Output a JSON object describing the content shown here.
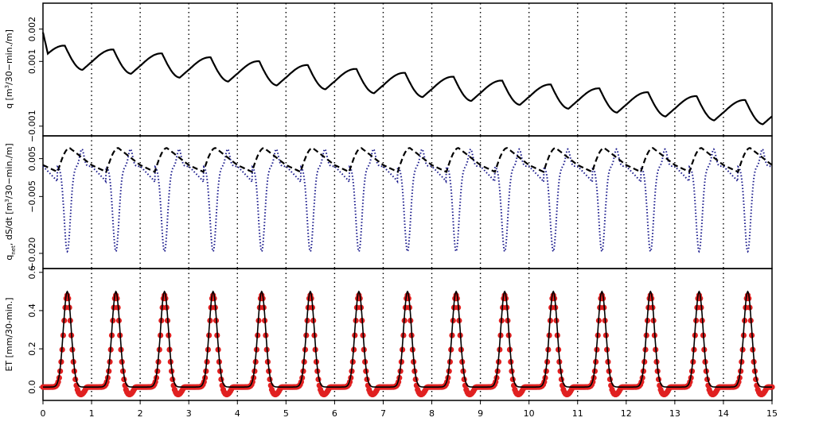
{
  "chart_data": [
    {
      "type": "line",
      "title": "",
      "ylabel": "q [m³/30-min./m]",
      "ylabel_parts": {
        "a": "q  [m",
        "sup": "3",
        "b": "/30−min./m]"
      },
      "xlim": [
        0,
        15
      ],
      "ylim": [
        -0.0013,
        0.0028
      ],
      "yticks": [
        -0.001,
        0.001,
        0.002
      ],
      "ytick_labels": [
        "−0.001",
        "0.001",
        "0.002"
      ],
      "grid": "vertical dotted lines at each day",
      "series": [
        {
          "style": "solid",
          "color": "#000000",
          "description": "daily sawtooth with declining trend",
          "start_value": 0.0019,
          "base_value": 0.0011,
          "trend_per_day": -0.00012,
          "peak_fraction_of_day": 0.45,
          "daily_amplitude": 0.0008
        }
      ]
    },
    {
      "type": "line",
      "title": "",
      "ylabel": "q_net, dS/dt [m³/30-min./m]",
      "ylabel_parts": {
        "a": "q",
        "sub": "net",
        "b": ",  dS/dt  [m",
        "sup": "3",
        "c": "/30−min./m]"
      },
      "xlim": [
        0,
        15
      ],
      "ylim": [
        -0.024,
        0.011
      ],
      "yticks": [
        -0.02,
        -0.005,
        0.005
      ],
      "ytick_labels": [
        "−0.020",
        "−0.005",
        "0.005"
      ],
      "grid": "vertical dotted lines at each day",
      "series": [
        {
          "style": "dashed",
          "color": "#000000",
          "daily_max": 0.0078,
          "daily_min": -0.0012,
          "peak_fraction_of_day": 0.55
        },
        {
          "style": "dotted",
          "color": "#1a1a8c",
          "daily_max": 0.0075,
          "daily_min": -0.0195,
          "trough_fraction_of_day": 0.5
        }
      ]
    },
    {
      "type": "line",
      "title": "",
      "ylabel": "ET [mm/30-min.]",
      "xlim": [
        0,
        15
      ],
      "ylim": [
        -0.07,
        0.62
      ],
      "yticks": [
        0.0,
        0.2,
        0.4,
        0.6
      ],
      "ytick_labels": [
        "0.0",
        "0.2",
        "0.4",
        "0.6"
      ],
      "xticks": [
        0,
        1,
        2,
        3,
        4,
        5,
        6,
        7,
        8,
        9,
        10,
        11,
        12,
        13,
        14,
        15
      ],
      "xtick_labels": [
        "0",
        "1",
        "2",
        "3",
        "4",
        "5",
        "6",
        "7",
        "8",
        "9",
        "10",
        "11",
        "12",
        "13",
        "14",
        "15"
      ],
      "grid": "vertical dotted lines at each day",
      "series": [
        {
          "style": "points",
          "color": "#e02020",
          "daily_peak": 0.48,
          "peak_time_fraction": 0.5,
          "night_dip": -0.04
        },
        {
          "style": "solid",
          "color": "#000000",
          "daily_peak": 0.5,
          "peak_time_fraction": 0.5,
          "night_value": 0.0
        }
      ]
    }
  ]
}
